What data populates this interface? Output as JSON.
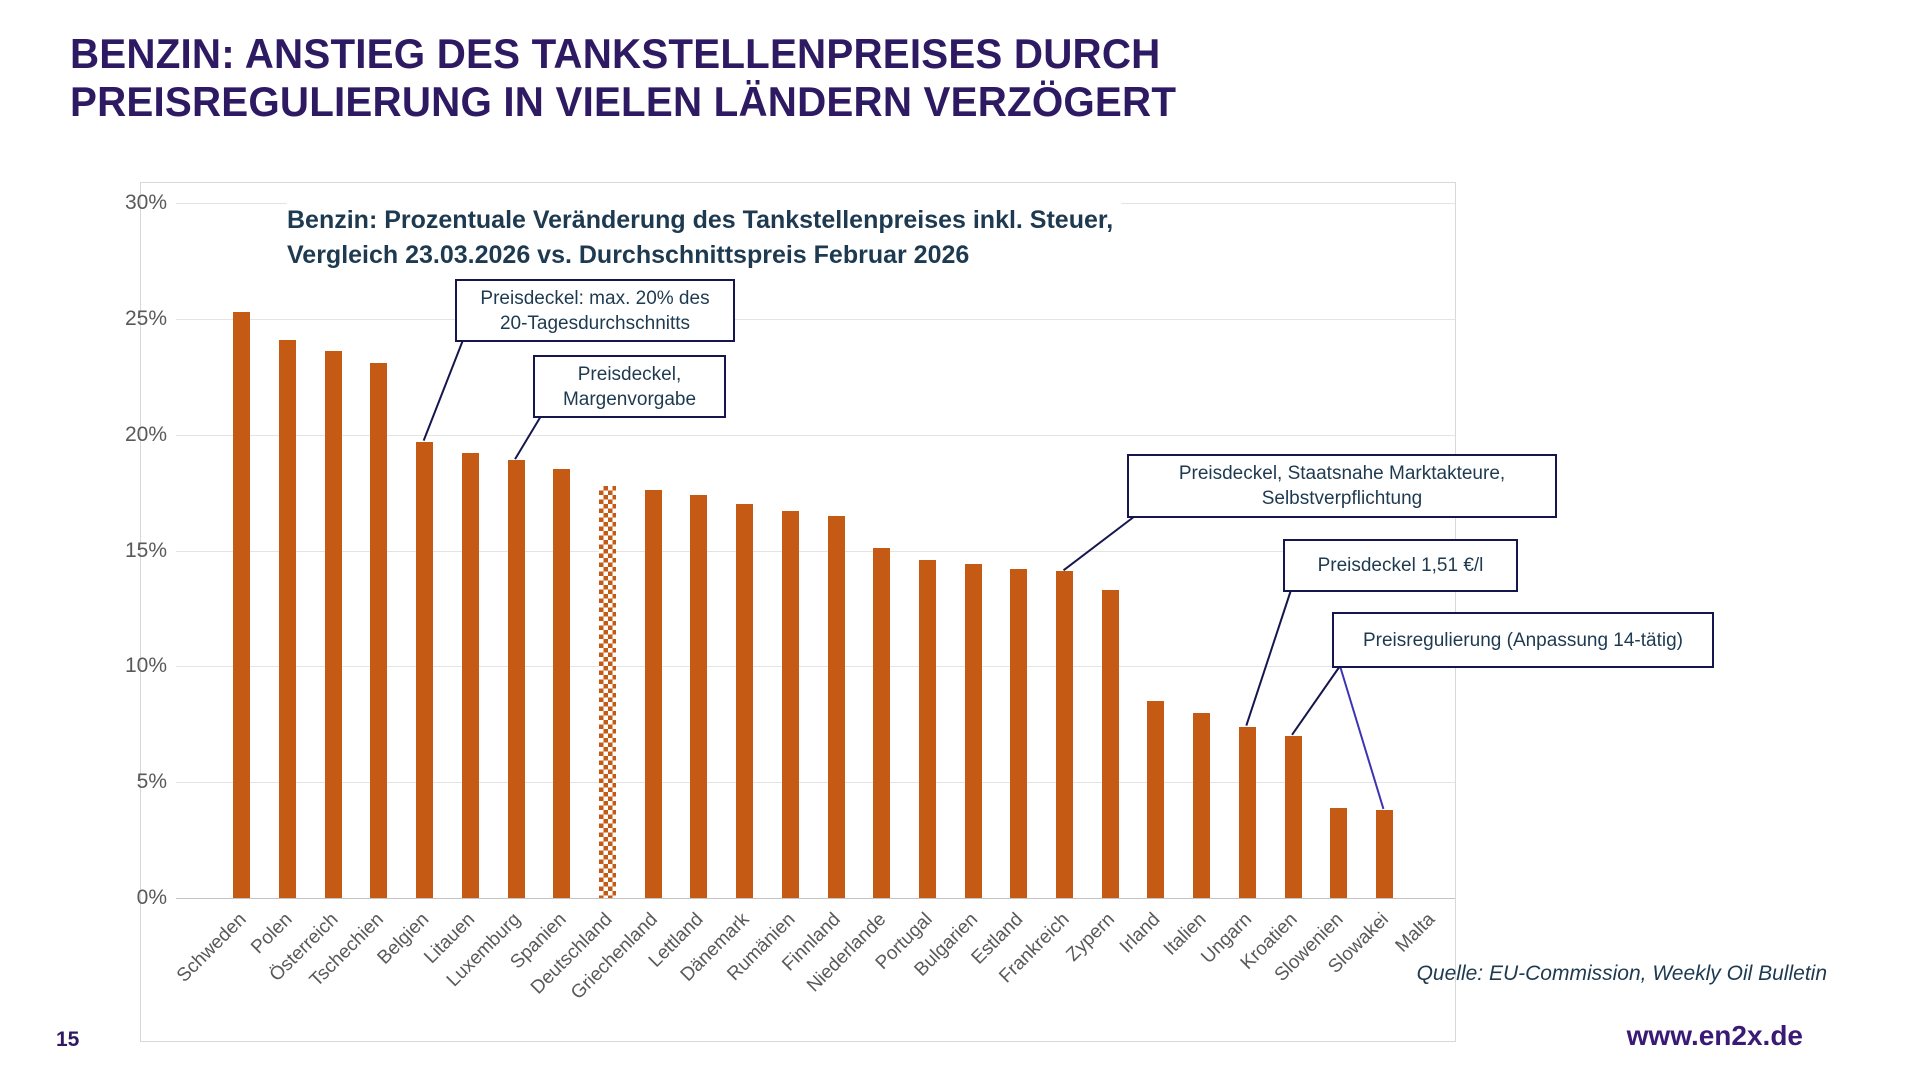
{
  "page": {
    "number": "15",
    "website": "www.en2x.de"
  },
  "title": {
    "line1": "BENZIN: ANSTIEG DES TANKSTELLENPREISES DURCH",
    "line2": "PREISREGULIERUNG IN VIELEN LÄNDERN VERZÖGERT"
  },
  "chart_data": {
    "type": "bar",
    "title_line1": "Benzin: Prozentuale Veränderung des Tankstellenpreises inkl. Steuer,",
    "title_line2": "Vergleich 23.03.2026 vs. Durchschnittspreis Februar 2026",
    "categories": [
      "Schweden",
      "Polen",
      "Österreich",
      "Tschechien",
      "Belgien",
      "Litauen",
      "Luxemburg",
      "Spanien",
      "Deutschland",
      "Griechenland",
      "Lettland",
      "Dänemark",
      "Rumänien",
      "Finnland",
      "Niederlande",
      "Portugal",
      "Bulgarien",
      "Estland",
      "Frankreich",
      "Zypern",
      "Irland",
      "Italien",
      "Ungarn",
      "Kroatien",
      "Slowenien",
      "Slowakei",
      "Malta"
    ],
    "values": [
      25.3,
      24.1,
      23.6,
      23.1,
      19.7,
      19.2,
      18.9,
      18.5,
      17.8,
      17.6,
      17.4,
      17.0,
      16.7,
      16.5,
      15.1,
      14.6,
      14.4,
      14.2,
      14.1,
      13.3,
      8.5,
      8.0,
      7.4,
      7.0,
      3.9,
      3.8,
      0
    ],
    "unit": "%",
    "ylim": [
      0,
      30
    ],
    "ytick_step": 5,
    "ytick_labels": [
      "0%",
      "5%",
      "10%",
      "15%",
      "20%",
      "25%",
      "30%"
    ],
    "grid": true,
    "legend": "none",
    "bar_color": "#c45a13",
    "pattern_category": "Deutschland",
    "pattern_style": "orange-white-checkerboard",
    "annotations": [
      {
        "text_lines": [
          "Preisdeckel: max. 20% des",
          "20-Tagesdurchschnitts"
        ],
        "targets": [
          "Belgien"
        ]
      },
      {
        "text_lines": [
          "Preisdeckel,",
          "Margenvorgabe"
        ],
        "targets": [
          "Luxemburg"
        ]
      },
      {
        "text_lines": [
          "Preisdeckel, Staatsnahe Marktakteure,",
          "Selbstverpflichtung"
        ],
        "targets": [
          "Frankreich"
        ]
      },
      {
        "text_lines": [
          "Preisdeckel 1,51 €/l"
        ],
        "targets": [
          "Ungarn"
        ]
      },
      {
        "text_lines": [
          "Preisregulierung (Anpassung 14-tätig)"
        ],
        "targets": [
          "Kroatien",
          "Slowakei"
        ]
      }
    ],
    "source": "Quelle: EU-Commission, Weekly Oil Bulletin",
    "colors": {
      "title_purple": "#2e1a63",
      "text_slate": "#1e3a50",
      "annotation_border_navy": "#16164f",
      "leader_line_navy": "#16164f",
      "leader_line_indigo": "#3c35b2",
      "axis_gray": "#595959",
      "gridline_gray": "#e4e4e4"
    }
  }
}
